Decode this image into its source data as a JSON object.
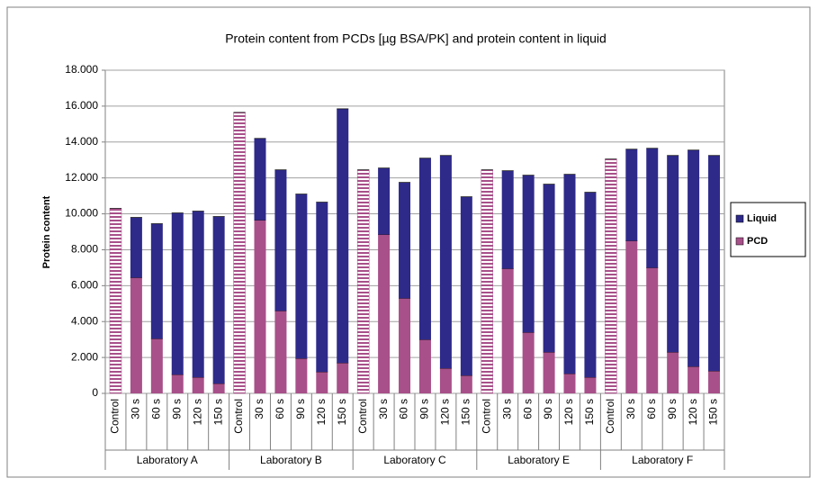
{
  "chart_data": {
    "type": "stacked_bar",
    "title": "Protein content from PCDs [µg BSA/PK] and protein content in liquid",
    "y_label": "Protein content",
    "groups": [
      "Laboratory A",
      "Laboratory B",
      "Laboratory C",
      "Laboratory E",
      "Laboratory F"
    ],
    "categories": [
      "Control",
      "30 s",
      "60 s",
      "90 s",
      "120 s",
      "150 s",
      "Control",
      "30 s",
      "60 s",
      "90 s",
      "120 s",
      "150 s",
      "Control",
      "30 s",
      "60 s",
      "90 s",
      "120 s",
      "150 s",
      "Control",
      "30 s",
      "60 s",
      "90 s",
      "120 s",
      "150 s",
      "Control",
      "30 s",
      "60 s",
      "90 s",
      "120 s",
      "150 s"
    ],
    "series": [
      {
        "name": "PCD",
        "color": "#a8508a",
        "values": [
          10300,
          6450,
          3050,
          1050,
          900,
          550,
          15650,
          9650,
          4600,
          1950,
          1200,
          1700,
          12450,
          8850,
          5300,
          3000,
          1400,
          1000,
          12450,
          6950,
          3400,
          2300,
          1100,
          900,
          13050,
          8500,
          7000,
          2300,
          1500,
          1250
        ]
      },
      {
        "name": "Liquid",
        "color": "#2e2a8a",
        "values": [
          null,
          3350,
          6400,
          9000,
          9250,
          9300,
          null,
          4550,
          7850,
          9150,
          9450,
          14150,
          null,
          3700,
          6450,
          10100,
          11850,
          9950,
          null,
          5450,
          8750,
          9350,
          11100,
          10300,
          null,
          5100,
          6650,
          10950,
          12050,
          12000
        ]
      }
    ],
    "ylim": [
      0,
      18000
    ],
    "yticks": [
      0,
      {
        "value": 2000,
        "label": "2.000"
      },
      {
        "value": 4000,
        "label": "4.000"
      },
      {
        "value": 6000,
        "label": "6.000"
      },
      {
        "value": 8000,
        "label": "8.000"
      },
      {
        "value": 10000,
        "label": "10.000"
      },
      {
        "value": 12000,
        "label": "12.000"
      },
      {
        "value": 14000,
        "label": "14.000"
      },
      {
        "value": 16000,
        "label": "16.000"
      },
      {
        "value": 18000,
        "label": "18.000"
      }
    ],
    "grid": true
  }
}
